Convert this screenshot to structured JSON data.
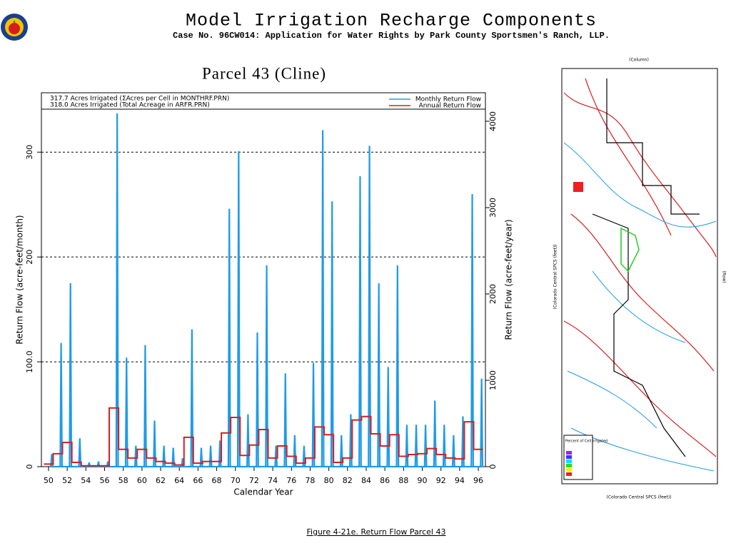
{
  "header": {
    "title": "Model Irrigation Recharge Components",
    "subtitle": "Case No. 96CW014: Application for Water Rights by Park County Sportsmen's Ranch, LLP."
  },
  "caption": "Figure 4-21e.  Return Flow Parcel 43",
  "map": {
    "column_label": "(Column)",
    "row_label": "(Row)",
    "x_label": "(Colorado Central SPCS (feet))",
    "y_label": "(Colorado Central SPCS (feet))",
    "legend_title": "Percent of Cell Irrigated"
  },
  "chart_data": {
    "type": "line",
    "title": "Parcel 43 (Cline)",
    "xlabel": "Calendar Year",
    "ylabel": "Return Flow (acre-feet/month)",
    "y2label": "Return Flow (acre-feet/year)",
    "annotations": [
      "317.7 Acres Irrigated (ΣAcres per Cell in MONTHRF.PRN)",
      "318.0 Acres Irrigated (Total Acreage in ARFR.PRN)"
    ],
    "xlim": [
      49.24,
      96.76
    ],
    "ylim": [
      0,
      341
    ],
    "y2lim": [
      0,
      4140
    ],
    "xticks": [
      50,
      52,
      54,
      56,
      58,
      60,
      62,
      64,
      66,
      68,
      70,
      72,
      74,
      76,
      78,
      80,
      82,
      84,
      86,
      88,
      90,
      92,
      94,
      96
    ],
    "yticks": [
      0,
      {
        "value": 100,
        "label": "100.0"
      },
      200,
      300
    ],
    "y2ticks": [
      0,
      1000,
      2000,
      3000,
      4000
    ],
    "grid": true,
    "legend": "upper right",
    "series": [
      {
        "name": "Monthly Return Flow",
        "color": "#1e9be8",
        "x": [
          50.25,
          50.35,
          50.45,
          51.25,
          51.35,
          51.45,
          52.25,
          52.35,
          52.45,
          53.25,
          53.35,
          53.45,
          54.25,
          54.35,
          54.45,
          55.25,
          55.35,
          55.45,
          56.25,
          56.35,
          56.45,
          57.25,
          57.35,
          57.45,
          58.25,
          58.35,
          58.45,
          59.25,
          59.35,
          59.45,
          60.25,
          60.35,
          60.45,
          61.25,
          61.35,
          61.45,
          62.25,
          62.35,
          62.45,
          63.25,
          63.35,
          63.45,
          64.25,
          64.35,
          64.45,
          65.25,
          65.35,
          65.45,
          66.25,
          66.35,
          66.45,
          67.25,
          67.35,
          67.45,
          68.25,
          68.35,
          68.45,
          69.25,
          69.35,
          69.45,
          70.25,
          70.35,
          70.45,
          71.25,
          71.35,
          71.45,
          72.25,
          72.35,
          72.45,
          73.25,
          73.35,
          73.45,
          74.25,
          74.35,
          74.45,
          75.25,
          75.35,
          75.45,
          76.25,
          76.35,
          76.45,
          77.25,
          77.35,
          77.45,
          78.25,
          78.35,
          78.45,
          79.25,
          79.35,
          79.45,
          80.25,
          80.35,
          80.45,
          81.25,
          81.35,
          81.45,
          82.25,
          82.35,
          82.45,
          83.25,
          83.35,
          83.45,
          84.25,
          84.35,
          84.45,
          85.25,
          85.35,
          85.45,
          86.25,
          86.35,
          86.45,
          87.25,
          87.35,
          87.45,
          88.25,
          88.35,
          88.45,
          89.25,
          89.35,
          89.45,
          90.25,
          90.35,
          90.45,
          91.25,
          91.35,
          91.45,
          92.25,
          92.35,
          92.45,
          93.25,
          93.35,
          93.45,
          94.25,
          94.35,
          94.45,
          95.25,
          95.35,
          95.45,
          96.25,
          96.35,
          96.45
        ],
        "values": [
          0,
          12,
          0,
          0,
          118,
          0,
          0,
          175,
          0,
          0,
          27,
          0,
          0,
          4,
          0,
          0,
          5,
          0,
          0,
          5,
          0,
          0,
          337,
          0,
          0,
          104,
          0,
          0,
          20,
          0,
          0,
          116,
          0,
          0,
          44,
          0,
          0,
          20,
          0,
          0,
          18,
          0,
          0,
          8,
          0,
          0,
          131,
          0,
          0,
          18,
          0,
          0,
          20,
          0,
          0,
          25,
          0,
          0,
          246,
          0,
          0,
          301,
          0,
          0,
          50,
          0,
          0,
          128,
          0,
          0,
          192,
          0,
          0,
          20,
          0,
          0,
          89,
          0,
          0,
          30,
          0,
          0,
          20,
          0,
          0,
          99,
          0,
          0,
          321,
          0,
          0,
          253,
          0,
          0,
          30,
          0,
          0,
          50,
          0,
          0,
          277,
          0,
          0,
          306,
          0,
          0,
          175,
          0,
          0,
          95,
          0,
          0,
          192,
          0,
          0,
          40,
          0,
          0,
          40,
          0,
          0,
          40,
          0,
          0,
          63,
          0,
          0,
          40,
          0,
          0,
          30,
          0,
          0,
          48,
          0,
          0,
          260,
          0,
          0,
          84,
          0
        ]
      },
      {
        "name": "Annual Return Flow",
        "color": "#d42020",
        "axis": "y2",
        "drawstyle": "steps-mid",
        "x": [
          50,
          51,
          52,
          53,
          54,
          55,
          56,
          57,
          58,
          59,
          60,
          61,
          62,
          63,
          64,
          65,
          66,
          67,
          68,
          69,
          70,
          71,
          72,
          73,
          74,
          75,
          76,
          77,
          78,
          79,
          80,
          81,
          82,
          83,
          84,
          85,
          86,
          87,
          88,
          89,
          90,
          91,
          92,
          93,
          94,
          95,
          96
        ],
        "values": [
          30,
          150,
          280,
          50,
          10,
          10,
          10,
          680,
          200,
          100,
          200,
          100,
          60,
          40,
          20,
          340,
          40,
          60,
          60,
          390,
          570,
          130,
          250,
          430,
          100,
          240,
          120,
          40,
          100,
          460,
          370,
          50,
          100,
          540,
          580,
          380,
          240,
          370,
          120,
          140,
          150,
          210,
          140,
          100,
          90,
          520,
          200
        ]
      }
    ]
  }
}
